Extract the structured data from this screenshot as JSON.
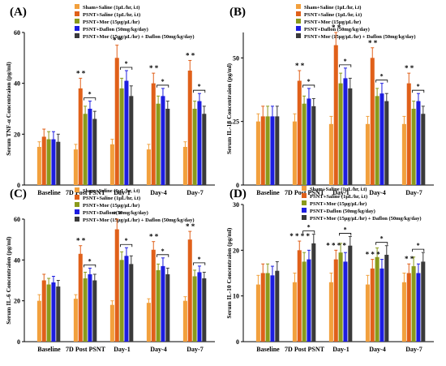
{
  "legend": {
    "items": [
      "Sham+Saline (1µL/hr, i.t)",
      "PSNT+Saline (1µL/hr, i.t)",
      "PSNT+Mor (15µg/µL/hr)",
      "PSNT+Daflon (50mg/kg/day)",
      "PSNT+Mor (15µg/µL/hr) + Daflon (50mg/kg/day)"
    ]
  },
  "colors": [
    "#f2a03d",
    "#e0601a",
    "#8a9a1b",
    "#1d1de0",
    "#3a3a3a"
  ],
  "chart_data": [
    {
      "panel_label": "(A)",
      "type": "bar",
      "ylabel": "Serum TNF-α  Concentraion (pg/ml)",
      "xlabel": "",
      "ylim": [
        0,
        60
      ],
      "yticks": [
        0,
        20,
        40,
        60
      ],
      "categories": [
        "Baseline",
        "7D Post PSNT",
        "Day-1",
        "Day-4",
        "Day-7"
      ],
      "series": [
        {
          "name": "Sham+Saline (1µL/hr, i.t)",
          "values": [
            15,
            14,
            16,
            14,
            15
          ],
          "errors": [
            2,
            2,
            2,
            2,
            2
          ]
        },
        {
          "name": "PSNT+Saline (1µL/hr, i.t)",
          "values": [
            19,
            38,
            50,
            40,
            45
          ],
          "errors": [
            3,
            4,
            5,
            4,
            4
          ]
        },
        {
          "name": "PSNT+Mor (15µg/µL/hr)",
          "values": [
            18,
            28,
            38,
            32,
            30
          ],
          "errors": [
            3,
            3,
            4,
            3,
            3
          ]
        },
        {
          "name": "PSNT+Daflon (50mg/kg/day)",
          "values": [
            18,
            30,
            41,
            35,
            33
          ],
          "errors": [
            3,
            3,
            4,
            3,
            3
          ]
        },
        {
          "name": "PSNT+Mor (15µg/µL/hr) + Daflon (50mg/kg/day)",
          "values": [
            17,
            26,
            35,
            30,
            28
          ],
          "errors": [
            3,
            3,
            4,
            3,
            3
          ]
        }
      ],
      "stars": {
        "7D Post PSNT": "* *",
        "Day-1": "* *",
        "Day-4": "* *",
        "Day-7": "* *"
      },
      "bracket_star": "*"
    },
    {
      "panel_label": "(B)",
      "type": "bar",
      "ylabel": "Serum IL-1β Concentraion (pg/ml)",
      "xlabel": "",
      "ylim": [
        0,
        60
      ],
      "yticks": [
        0,
        25,
        50
      ],
      "categories": [
        "Baseline",
        "7D Post PSNT",
        "Day-1",
        "Day-4",
        "Day-7"
      ],
      "series": [
        {
          "name": "Sham+Saline (1µL/hr, i.t)",
          "values": [
            25,
            25,
            24,
            24,
            24
          ],
          "errors": [
            3,
            3,
            3,
            3,
            3
          ]
        },
        {
          "name": "PSNT+Saline (1µL/hr, i.t)",
          "values": [
            27,
            41,
            55,
            50,
            40
          ],
          "errors": [
            4,
            4,
            5,
            4,
            4
          ]
        },
        {
          "name": "PSNT+Mor (15µg/µL/hr)",
          "values": [
            27,
            32,
            40,
            35,
            30
          ],
          "errors": [
            4,
            3,
            4,
            3,
            3
          ]
        },
        {
          "name": "PSNT+Daflon (50mg/kg/day)",
          "values": [
            27,
            34,
            42,
            36,
            33
          ],
          "errors": [
            4,
            4,
            4,
            4,
            3
          ]
        },
        {
          "name": "PSNT+Mor (15µg/µL/hr) + Daflon (50mg/kg/day)",
          "values": [
            27,
            31,
            38,
            33,
            28
          ],
          "errors": [
            4,
            3,
            4,
            3,
            3
          ]
        }
      ],
      "stars": {
        "7D Post PSNT": "* *",
        "Day-1": "* *",
        "Day-4": "* *",
        "Day-7": "* *"
      },
      "bracket_star": "*"
    },
    {
      "panel_label": "(C)",
      "type": "bar",
      "ylabel": "Serum IL-6  Concentraion (pg/ml)",
      "xlabel": "",
      "ylim": [
        0,
        60
      ],
      "yticks": [
        0,
        20,
        40,
        60
      ],
      "categories": [
        "Baseline",
        "7D Post PSNT",
        "Day-1",
        "Day-4",
        "Day-7"
      ],
      "series": [
        {
          "name": "Sham+Saline (1µL/hr, i.t)",
          "values": [
            20,
            21,
            18,
            19,
            20
          ],
          "errors": [
            3,
            2,
            2,
            2,
            2
          ]
        },
        {
          "name": "PSNT+Saline (1µL/hr, i.t)",
          "values": [
            30,
            43,
            55,
            45,
            50
          ],
          "errors": [
            3,
            4,
            5,
            4,
            4
          ]
        },
        {
          "name": "PSNT+Mor (15µg/µL/hr)",
          "values": [
            28,
            31,
            40,
            35,
            32
          ],
          "errors": [
            3,
            3,
            4,
            3,
            3
          ]
        },
        {
          "name": "PSNT+Daflon (50mg/kg/day)",
          "values": [
            29,
            33,
            42,
            37,
            34
          ],
          "errors": [
            3,
            3,
            4,
            4,
            3
          ]
        },
        {
          "name": "PSNT+Mor (15µg/µL/hr) + Daflon (50mg/kg/day)",
          "values": [
            27,
            30,
            38,
            33,
            31
          ],
          "errors": [
            3,
            3,
            4,
            3,
            3
          ]
        }
      ],
      "stars": {
        "7D Post PSNT": "* *",
        "Day-1": "* *",
        "Day-4": "* *",
        "Day-7": "* *"
      },
      "bracket_star": "*"
    },
    {
      "panel_label": "(D)",
      "type": "bar",
      "ylabel": "Serum IL-10  Concentraion (pg/ml)",
      "xlabel": "",
      "ylim": [
        0,
        30
      ],
      "yticks": [
        0,
        10,
        20,
        30
      ],
      "categories": [
        "Baseline",
        "7D Post PSNT",
        "Day-1",
        "Day-4",
        "Day-7"
      ],
      "series": [
        {
          "name": "Sham+Saline (1µL/hr, i.t)",
          "values": [
            12.5,
            13,
            13,
            12.5,
            13
          ],
          "errors": [
            2,
            2,
            2,
            2,
            2
          ]
        },
        {
          "name": "PSNT+Saline (1µL/hr, i.t)",
          "values": [
            15,
            20,
            18,
            16,
            15
          ],
          "errors": [
            2,
            2,
            2,
            2,
            2
          ]
        },
        {
          "name": "PSNT+Mor (15µg/µL/hr)",
          "values": [
            15,
            17.5,
            19.5,
            18.5,
            16.5
          ],
          "errors": [
            2,
            2,
            2,
            2,
            2
          ]
        },
        {
          "name": "PSNT+Daflon (50mg/kg/day)",
          "values": [
            14.5,
            18,
            17.5,
            16,
            15
          ],
          "errors": [
            2,
            2,
            2,
            2,
            2
          ]
        },
        {
          "name": "PSNT+Mor (15µg/µL/hr) + Daflon (50mg/kg/day)",
          "values": [
            15.5,
            21.5,
            21,
            19,
            17.5
          ],
          "errors": [
            2,
            2,
            2,
            2,
            2
          ]
        }
      ],
      "stars": {
        "7D Post PSNT": "*  * * *",
        "Day-1": "*  * * *",
        "Day-4": "*  * *",
        "Day-7": "* *"
      },
      "bracket_star": "*"
    }
  ]
}
